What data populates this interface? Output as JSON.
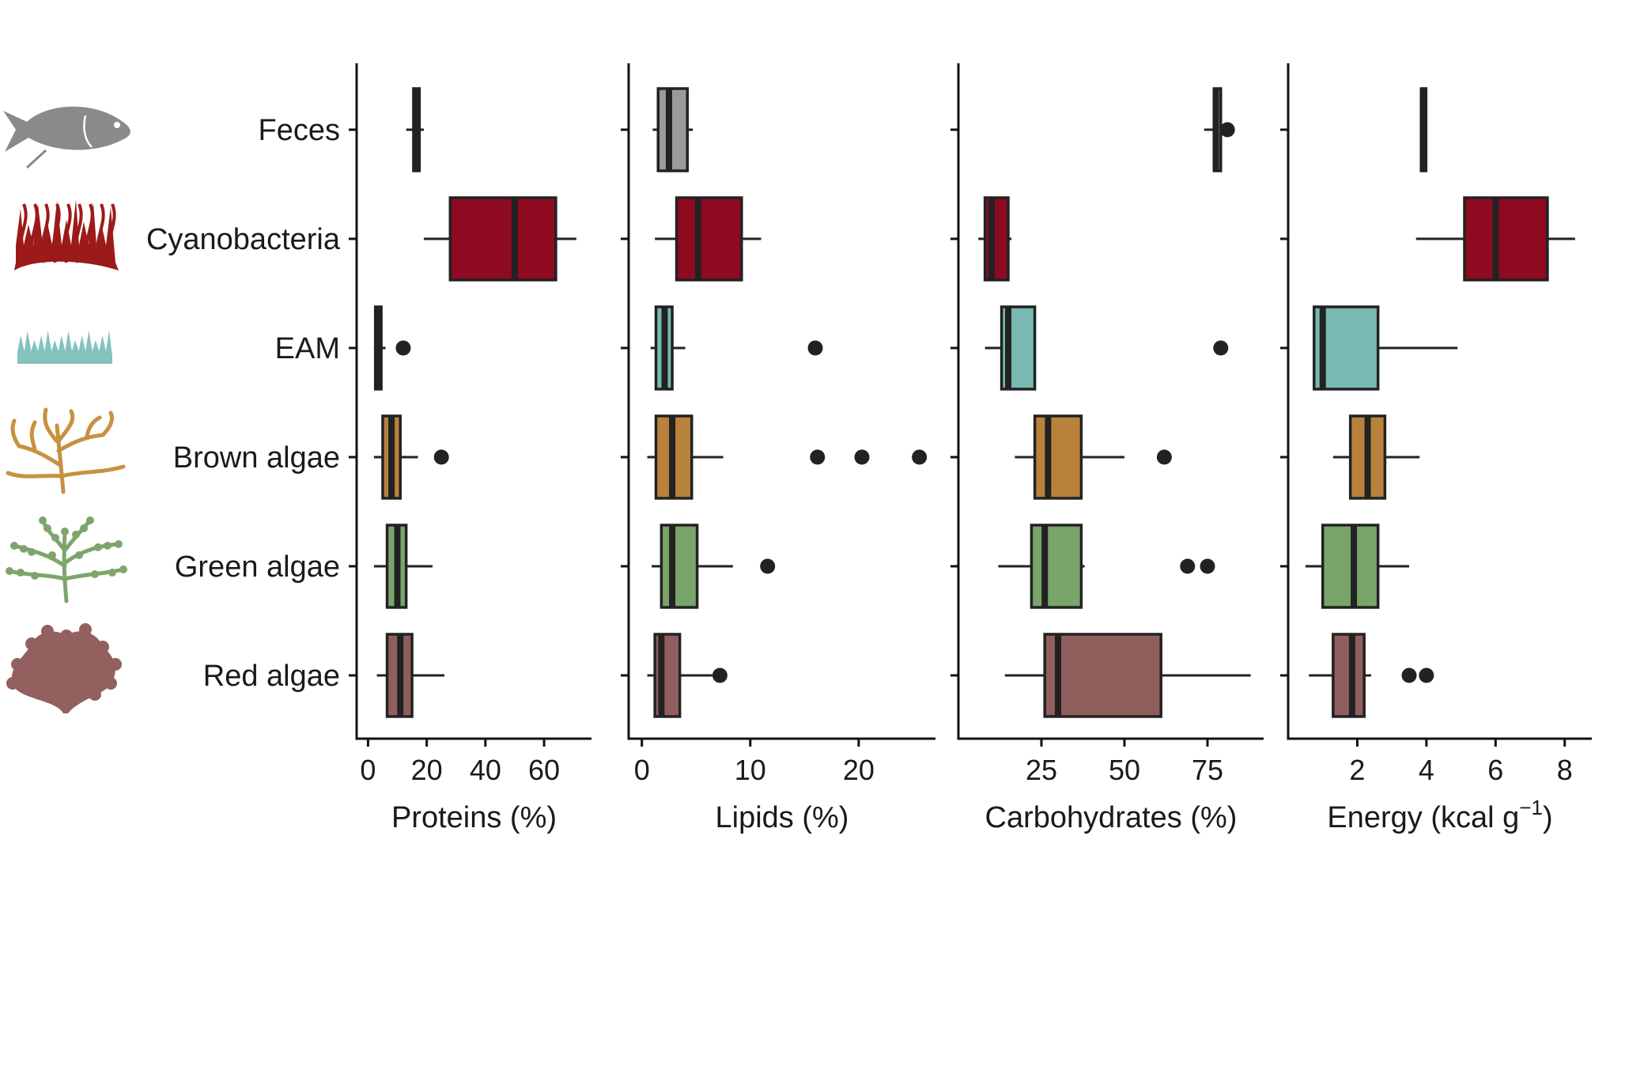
{
  "chart_data": {
    "type": "boxplot",
    "orientation": "horizontal",
    "categories": [
      "Feces",
      "Cyanobacteria",
      "EAM",
      "Brown algae",
      "Green algae",
      "Red algae"
    ],
    "icons": [
      "fish-icon",
      "cyanobacteria-icon",
      "eam-turf-icon",
      "brown-algae-icon",
      "green-algae-icon",
      "red-algae-icon"
    ],
    "colors": {
      "Feces": "#9b9b9b",
      "Cyanobacteria": "#8e0a21",
      "EAM": "#78b9b1",
      "Brown algae": "#b8823d",
      "Green algae": "#7aa56a",
      "Red algae": "#8f5f5e"
    },
    "icon_colors": {
      "Feces": "#8a8a8a",
      "Cyanobacteria": "#9c1a19",
      "EAM": "#83c2bd",
      "Brown algae": "#c8913f",
      "Green algae": "#7ea56c",
      "Red algae": "#94605f"
    },
    "panels": [
      {
        "xlabel": "Proteins (%)",
        "xlim": [
          -2,
          74
        ],
        "ticks": [
          0,
          20,
          40,
          60
        ],
        "tick_labels": [
          "0",
          "20",
          "40",
          "60"
        ],
        "series": [
          {
            "category": "Feces",
            "whisker_low": 13,
            "q1": 15.5,
            "median": 16.5,
            "q3": 17.5,
            "whisker_high": 19,
            "outliers": []
          },
          {
            "category": "Cyanobacteria",
            "whisker_low": 19,
            "q1": 28,
            "median": 50,
            "q3": 64,
            "whisker_high": 71,
            "outliers": []
          },
          {
            "category": "EAM",
            "whisker_low": 2,
            "q1": 2.5,
            "median": 3.5,
            "q3": 4.5,
            "whisker_high": 6,
            "outliers": [
              12
            ]
          },
          {
            "category": "Brown algae",
            "whisker_low": 2,
            "q1": 5,
            "median": 8,
            "q3": 11,
            "whisker_high": 17,
            "outliers": [
              25
            ]
          },
          {
            "category": "Green algae",
            "whisker_low": 2,
            "q1": 6.5,
            "median": 10,
            "q3": 13,
            "whisker_high": 22,
            "outliers": []
          },
          {
            "category": "Red algae",
            "whisker_low": 3,
            "q1": 6.5,
            "median": 11,
            "q3": 15,
            "whisker_high": 26,
            "outliers": []
          }
        ]
      },
      {
        "xlabel": "Lipids (%)",
        "xlim": [
          -1,
          26.5
        ],
        "ticks": [
          0,
          10,
          20
        ],
        "tick_labels": [
          "0",
          "10",
          "20"
        ],
        "series": [
          {
            "category": "Feces",
            "whisker_low": 1,
            "q1": 1.5,
            "median": 2.5,
            "q3": 4.2,
            "whisker_high": 4.7,
            "outliers": []
          },
          {
            "category": "Cyanobacteria",
            "whisker_low": 1.2,
            "q1": 3.2,
            "median": 5.2,
            "q3": 9.2,
            "whisker_high": 11,
            "outliers": []
          },
          {
            "category": "EAM",
            "whisker_low": 0.8,
            "q1": 1.3,
            "median": 2.1,
            "q3": 2.8,
            "whisker_high": 4,
            "outliers": [
              16
            ]
          },
          {
            "category": "Brown algae",
            "whisker_low": 0.5,
            "q1": 1.3,
            "median": 2.8,
            "q3": 4.6,
            "whisker_high": 7.5,
            "outliers": [
              16.2,
              20.3,
              25.6
            ]
          },
          {
            "category": "Green algae",
            "whisker_low": 0.9,
            "q1": 1.8,
            "median": 2.8,
            "q3": 5.1,
            "whisker_high": 8.4,
            "outliers": [
              11.6
            ]
          },
          {
            "category": "Red algae",
            "whisker_low": 0.5,
            "q1": 1.2,
            "median": 1.8,
            "q3": 3.5,
            "whisker_high": 6.5,
            "outliers": [
              7.2
            ]
          }
        ]
      },
      {
        "xlabel": "Carbohydrates (%)",
        "xlim": [
          0,
          90
        ],
        "ticks": [
          25,
          50,
          75
        ],
        "tick_labels": [
          "25",
          "50",
          "75"
        ],
        "series": [
          {
            "category": "Feces",
            "whisker_low": 74,
            "q1": 77,
            "median": 77.5,
            "q3": 79,
            "whisker_high": 80,
            "outliers": [
              81
            ]
          },
          {
            "category": "Cyanobacteria",
            "whisker_low": 6,
            "q1": 8,
            "median": 10,
            "q3": 15,
            "whisker_high": 16,
            "outliers": []
          },
          {
            "category": "EAM",
            "whisker_low": 8,
            "q1": 13,
            "median": 15,
            "q3": 23,
            "whisker_high": 23,
            "outliers": [
              79
            ]
          },
          {
            "category": "Brown algae",
            "whisker_low": 17,
            "q1": 23,
            "median": 27,
            "q3": 37,
            "whisker_high": 50,
            "outliers": [
              62
            ]
          },
          {
            "category": "Green algae",
            "whisker_low": 12,
            "q1": 22,
            "median": 26,
            "q3": 37,
            "whisker_high": 38,
            "outliers": [
              69,
              75
            ]
          },
          {
            "category": "Red algae",
            "whisker_low": 14,
            "q1": 26,
            "median": 30,
            "q3": 61,
            "whisker_high": 88,
            "outliers": []
          }
        ]
      },
      {
        "xlabel": "Energy (kcal g",
        "xlabel_sup": "−1",
        "xlabel_close": ")",
        "xlim": [
          0,
          8.6
        ],
        "ticks": [
          2,
          4,
          6,
          8
        ],
        "tick_labels": [
          "2",
          "4",
          "6",
          "8"
        ],
        "series": [
          {
            "category": "Feces",
            "whisker_low": 3.85,
            "q1": 3.85,
            "median": 3.9,
            "q3": 3.95,
            "whisker_high": 3.95,
            "outliers": []
          },
          {
            "category": "Cyanobacteria",
            "whisker_low": 3.7,
            "q1": 5.1,
            "median": 6,
            "q3": 7.5,
            "whisker_high": 8.3,
            "outliers": []
          },
          {
            "category": "EAM",
            "whisker_low": 0.75,
            "q1": 0.75,
            "median": 1,
            "q3": 2.6,
            "whisker_high": 4.9,
            "outliers": []
          },
          {
            "category": "Brown algae",
            "whisker_low": 1.3,
            "q1": 1.8,
            "median": 2.3,
            "q3": 2.8,
            "whisker_high": 3.8,
            "outliers": []
          },
          {
            "category": "Green algae",
            "whisker_low": 0.5,
            "q1": 1,
            "median": 1.9,
            "q3": 2.6,
            "whisker_high": 3.5,
            "outliers": []
          },
          {
            "category": "Red algae",
            "whisker_low": 0.6,
            "q1": 1.3,
            "median": 1.85,
            "q3": 2.2,
            "whisker_high": 2.4,
            "outliers": [
              3.5,
              4.0
            ]
          }
        ]
      }
    ],
    "grid": false,
    "legend": "none"
  }
}
